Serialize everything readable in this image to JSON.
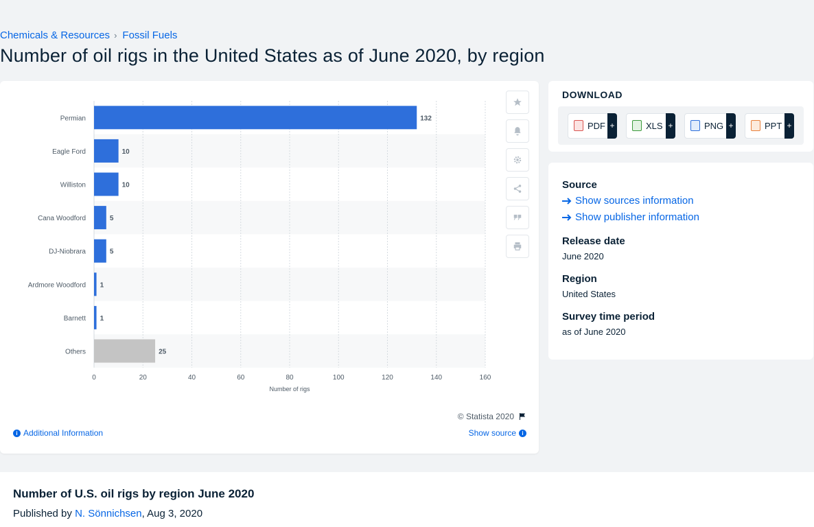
{
  "breadcrumb": {
    "items": [
      "Chemicals & Resources",
      "Fossil Fuels"
    ],
    "separator": "›"
  },
  "page_title": "Number of oil rigs in the United States as of June 2020, by region",
  "chart_data": {
    "type": "bar",
    "orientation": "horizontal",
    "categories": [
      "Permian",
      "Eagle Ford",
      "Williston",
      "Cana Woodford",
      "DJ-Niobrara",
      "Ardmore Woodford",
      "Barnett",
      "Others"
    ],
    "values": [
      132,
      10,
      10,
      5,
      5,
      1,
      1,
      25
    ],
    "bar_colors": [
      "#2e6fdb",
      "#2e6fdb",
      "#2e6fdb",
      "#2e6fdb",
      "#2e6fdb",
      "#2e6fdb",
      "#2e6fdb",
      "#c4c4c4"
    ],
    "xlabel": "Number of rigs",
    "xlim": [
      0,
      160
    ],
    "xticks": [
      0,
      20,
      40,
      60,
      80,
      100,
      120,
      140,
      160
    ],
    "grid": true,
    "data_labels": true
  },
  "chart_tools": {
    "icons": [
      "star-icon",
      "bell-icon",
      "gear-icon",
      "share-icon",
      "quote-icon",
      "print-icon"
    ]
  },
  "chart_footer": {
    "copyright": "© Statista 2020",
    "additional_info": "Additional Information",
    "show_source": "Show source"
  },
  "download": {
    "title": "DOWNLOAD",
    "formats": [
      {
        "label": "PDF",
        "color": "#d9534f"
      },
      {
        "label": "XLS",
        "color": "#3c9a3c"
      },
      {
        "label": "PNG",
        "color": "#2e6fdb"
      },
      {
        "label": "PPT",
        "color": "#e8803a"
      }
    ],
    "plus": "+"
  },
  "info": {
    "source_label": "Source",
    "show_sources": "Show sources information",
    "show_publisher": "Show publisher information",
    "release_date_label": "Release date",
    "release_date": "June 2020",
    "region_label": "Region",
    "region": "United States",
    "survey_label": "Survey time period",
    "survey": "as of June 2020"
  },
  "bottom": {
    "title": "Number of U.S. oil rigs by region June 2020",
    "published_by": "Published by",
    "author": "N. Sönnichsen",
    "date": ", Aug 3, 2020"
  },
  "colors": {
    "accent": "#0666e5",
    "bar": "#2e6fdb",
    "others_bar": "#c4c4c4",
    "dark": "#0a2135"
  }
}
